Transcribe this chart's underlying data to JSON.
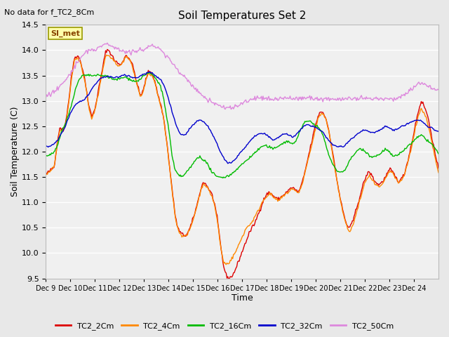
{
  "title": "Soil Temperatures Set 2",
  "subtitle": "No data for f_TC2_8Cm",
  "xlabel": "Time",
  "ylabel": "Soil Temperature (C)",
  "ylim": [
    9.5,
    14.5
  ],
  "background_color": "#e8e8e8",
  "plot_bg_color": "#f0f0f0",
  "grid_color": "#ffffff",
  "colors": {
    "TC2_2Cm": "#dd0000",
    "TC2_4Cm": "#ff8800",
    "TC2_16Cm": "#00bb00",
    "TC2_32Cm": "#0000cc",
    "TC2_50Cm": "#dd88dd"
  },
  "xtick_labels": [
    "Dec 9",
    "Dec 10",
    "Dec 11",
    "Dec 12",
    "Dec 13",
    "Dec 14",
    "Dec 15",
    "Dec 16",
    "Dec 17",
    "Dec 18",
    "Dec 19",
    "Dec 20",
    "Dec 21",
    "Dec 22",
    "Dec 23",
    "Dec 24"
  ],
  "ytick_values": [
    9.5,
    10.0,
    10.5,
    11.0,
    11.5,
    12.0,
    12.5,
    13.0,
    13.5,
    14.0,
    14.5
  ],
  "annotation_text": "SI_met",
  "annotation_fg": "#884400",
  "annotation_bg": "#ffffaa",
  "annotation_border": "#999900"
}
